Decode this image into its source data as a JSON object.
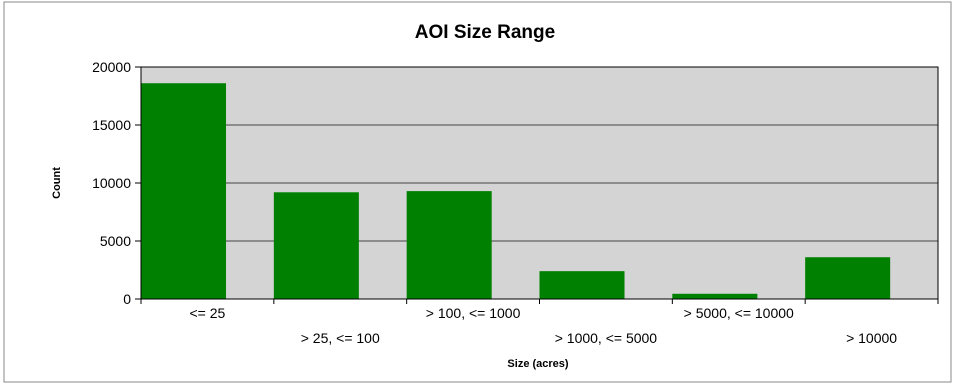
{
  "chart_data": {
    "type": "bar",
    "title": "AOI Size Range",
    "xlabel": "Size (acres)",
    "ylabel": "Count",
    "categories": [
      "<= 25",
      "> 25, <= 100",
      "> 100, <= 1000",
      "> 1000, <= 5000",
      "> 5000, <= 10000",
      "> 10000"
    ],
    "values": [
      18600,
      9200,
      9300,
      2400,
      450,
      3600
    ],
    "ylim": [
      0,
      20000
    ],
    "yticks": [
      0,
      5000,
      10000,
      15000,
      20000
    ],
    "grid": true,
    "legend": "none",
    "colors": {
      "bar": "#008000",
      "plot_background": "#d4d4d4",
      "gridline": "#444444",
      "border": "#000000"
    }
  }
}
